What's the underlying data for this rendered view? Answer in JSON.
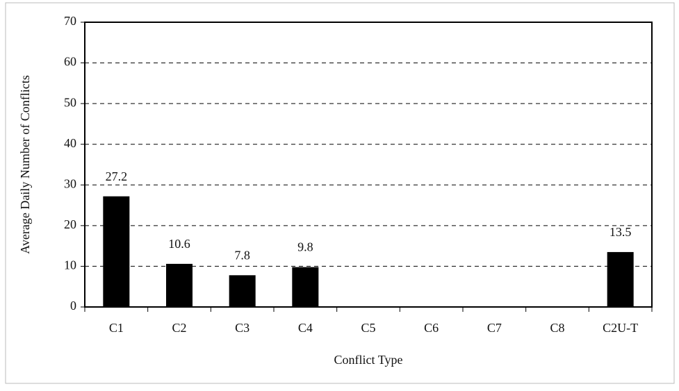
{
  "chart_data": {
    "type": "bar",
    "x_label": "Conflict Type",
    "y_label": "Average Daily Number of Conflicts",
    "categories": [
      "C1",
      "C2",
      "C3",
      "C4",
      "C5",
      "C6",
      "C7",
      "C8",
      "C2U-T"
    ],
    "values": [
      27.2,
      10.6,
      7.8,
      9.8,
      0,
      0,
      0,
      0,
      13.5
    ],
    "value_labels": [
      "27.2",
      "10.6",
      "7.8",
      "9.8",
      null,
      null,
      null,
      null,
      "13.5"
    ],
    "color": "#000000",
    "ylim": [
      0,
      70
    ],
    "yticks": [
      0,
      10,
      20,
      30,
      40,
      50,
      60,
      70
    ],
    "grid": true
  }
}
